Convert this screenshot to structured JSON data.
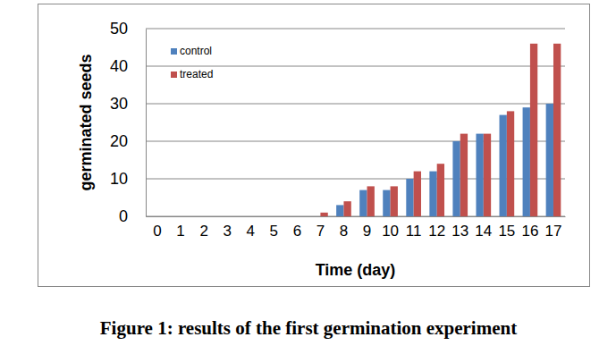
{
  "chart_data": {
    "type": "bar",
    "title": "Figure 1: results of the first germination experiment",
    "x_label": "Time (day)",
    "y_label": "germinated seeds",
    "categories": [
      "0",
      "1",
      "2",
      "3",
      "4",
      "5",
      "6",
      "7",
      "8",
      "9",
      "10",
      "11",
      "12",
      "13",
      "14",
      "15",
      "16",
      "17"
    ],
    "series": [
      {
        "name": "control",
        "color": "#4f81bd",
        "values": [
          0,
          0,
          0,
          0,
          0,
          0,
          0,
          0,
          3,
          7,
          7,
          10,
          12,
          20,
          22,
          27,
          29,
          30
        ]
      },
      {
        "name": "treated",
        "color": "#c0504d",
        "values": [
          0,
          0,
          0,
          0,
          0,
          0,
          0,
          1,
          4,
          8,
          8,
          12,
          14,
          22,
          22,
          28,
          46,
          46
        ]
      }
    ],
    "ylim": [
      0,
      50
    ],
    "yticks": [
      0,
      10,
      20,
      30,
      40,
      50
    ],
    "grid": true,
    "legend": "upper left"
  }
}
